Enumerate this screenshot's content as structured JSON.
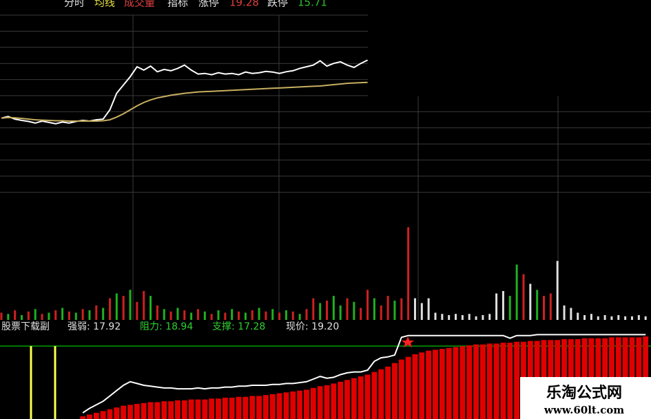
{
  "header": {
    "items": [
      {
        "text": "分时",
        "color": "#e0e0e0"
      },
      {
        "text": "均线",
        "color": "#e8e040"
      },
      {
        "text": "成交量",
        "color": "#e04040"
      },
      {
        "text": "指标",
        "color": "#e0e0e0"
      },
      {
        "text": "涨停",
        "color": "#e0e0e0"
      },
      {
        "text": "19.28",
        "color": "#e04040"
      },
      {
        "text": "跌停",
        "color": "#e0e0e0"
      },
      {
        "text": "15.71",
        "color": "#30c030"
      }
    ]
  },
  "indicator_legend": {
    "items": [
      {
        "text": "股票下载副",
        "color": "#e0e0e0"
      },
      {
        "text": "强弱: 17.92",
        "color": "#e0e0e0"
      },
      {
        "text": "阻力: 18.94",
        "color": "#30d030"
      },
      {
        "text": "支撑: 17.28",
        "color": "#30d030"
      },
      {
        "text": "现价: 19.20",
        "color": "#e0e0e0"
      }
    ]
  },
  "watermark": {
    "title": "乐淘公式网",
    "url": "www.60lt.com"
  },
  "chart_data": [
    {
      "type": "line",
      "ylim": [
        15.2,
        20.6
      ],
      "grid": true,
      "series": [
        {
          "color": "#ffffff",
          "values": [
            17.45,
            17.5,
            17.42,
            17.38,
            17.35,
            17.3,
            17.36,
            17.32,
            17.28,
            17.33,
            17.3,
            17.35,
            17.38,
            17.36,
            17.4,
            17.42,
            17.7,
            18.2,
            18.45,
            18.7,
            19.0,
            18.9,
            19.02,
            18.85,
            18.92,
            18.88,
            18.95,
            19.05,
            18.9,
            18.78,
            18.8,
            18.76,
            18.82,
            18.78,
            18.8,
            18.76,
            18.84,
            18.8,
            18.82,
            18.86,
            18.84,
            18.8,
            18.85,
            18.88,
            18.95,
            19.0,
            19.05,
            19.18,
            19.02,
            19.1,
            19.15,
            19.05,
            18.98,
            19.1,
            19.2
          ]
        },
        {
          "color": "#c8b060",
          "values": [
            17.45,
            17.47,
            17.46,
            17.44,
            17.42,
            17.4,
            17.39,
            17.38,
            17.37,
            17.37,
            17.36,
            17.36,
            17.36,
            17.36,
            17.36,
            17.37,
            17.4,
            17.48,
            17.58,
            17.7,
            17.82,
            17.92,
            18.0,
            18.06,
            18.1,
            18.14,
            18.17,
            18.2,
            18.22,
            18.24,
            18.25,
            18.26,
            18.27,
            18.28,
            18.29,
            18.3,
            18.31,
            18.32,
            18.33,
            18.34,
            18.35,
            18.36,
            18.37,
            18.38,
            18.39,
            18.4,
            18.41,
            18.42,
            18.44,
            18.46,
            18.48,
            18.5,
            18.51,
            18.52,
            18.53
          ]
        }
      ]
    },
    {
      "type": "bar",
      "ylim": [
        0,
        100
      ],
      "values": [
        6,
        5,
        8,
        4,
        7,
        9,
        5,
        6,
        8,
        10,
        7,
        6,
        9,
        8,
        12,
        10,
        18,
        22,
        20,
        25,
        15,
        24,
        20,
        12,
        9,
        7,
        10,
        8,
        6,
        9,
        7,
        5,
        8,
        6,
        9,
        7,
        6,
        8,
        10,
        7,
        9,
        6,
        8,
        7,
        5,
        9,
        18,
        14,
        16,
        20,
        12,
        18,
        15,
        10,
        25,
        18,
        12,
        20,
        16,
        18,
        77,
        18,
        14,
        18,
        6,
        5,
        4,
        5,
        4,
        5,
        3,
        4,
        5,
        22,
        24,
        20,
        46,
        38,
        30,
        25,
        20,
        22,
        49,
        12,
        10,
        6,
        4,
        5,
        3,
        4,
        3,
        4,
        3,
        3,
        4,
        3
      ],
      "colors": [
        "#d02020",
        "#20b020",
        "#d02020",
        "#20b020",
        "#d02020",
        "#20b020",
        "#d02020",
        "#20b020",
        "#d02020",
        "#20b020",
        "#d02020",
        "#20b020",
        "#d02020",
        "#20b020",
        "#d02020",
        "#20b020",
        "#d02020",
        "#20b020",
        "#d02020",
        "#20b020",
        "#d02020",
        "#d02020",
        "#20b020",
        "#d02020",
        "#20b020",
        "#d02020",
        "#20b020",
        "#d02020",
        "#20b020",
        "#d02020",
        "#20b020",
        "#d02020",
        "#20b020",
        "#d02020",
        "#20b020",
        "#d02020",
        "#20b020",
        "#d02020",
        "#20b020",
        "#d02020",
        "#20b020",
        "#d02020",
        "#20b020",
        "#d02020",
        "#20b020",
        "#d02020",
        "#d02020",
        "#20b020",
        "#d02020",
        "#20b020",
        "#20b020",
        "#d02020",
        "#20b020",
        "#d02020",
        "#d02020",
        "#20b020",
        "#d02020",
        "#d02020",
        "#20b020",
        "#d02020",
        "#d02020",
        "#e0e0e0",
        "#e0e0e0",
        "#e0e0e0",
        "#e0e0e0",
        "#e0e0e0",
        "#e0e0e0",
        "#e0e0e0",
        "#e0e0e0",
        "#e0e0e0",
        "#e0e0e0",
        "#e0e0e0",
        "#e0e0e0",
        "#e0e0e0",
        "#e0e0e0",
        "#20b020",
        "#20b020",
        "#d02020",
        "#e0e0e0",
        "#20b020",
        "#d02020",
        "#d02020",
        "#e0e0e0",
        "#e0e0e0",
        "#e0e0e0",
        "#e0e0e0",
        "#e0e0e0",
        "#e0e0e0",
        "#e0e0e0",
        "#e0e0e0",
        "#e0e0e0",
        "#e0e0e0",
        "#e0e0e0",
        "#e0e0e0",
        "#e0e0e0",
        "#e0e0e0"
      ]
    },
    {
      "type": "combo",
      "ylim": [
        0,
        100
      ],
      "series": [
        {
          "type": "bar",
          "color": "#e00000",
          "values": [
            null,
            null,
            null,
            null,
            null,
            null,
            null,
            null,
            null,
            null,
            null,
            null,
            3,
            5,
            7,
            9,
            11,
            13,
            15,
            16,
            17,
            18,
            19,
            19,
            20,
            20,
            21,
            21,
            22,
            22,
            22,
            23,
            23,
            24,
            24,
            25,
            25,
            26,
            26,
            27,
            28,
            29,
            30,
            31,
            32,
            33,
            35,
            37,
            38,
            40,
            42,
            44,
            46,
            48,
            50,
            53,
            56,
            59,
            63,
            67,
            70,
            73,
            75,
            77,
            78,
            79,
            80,
            81,
            82,
            83,
            84,
            84,
            85,
            85,
            86,
            86,
            87,
            87,
            88,
            88,
            89,
            89,
            89,
            90,
            90,
            90,
            91,
            91,
            91,
            91,
            92,
            92,
            92,
            92,
            92,
            93
          ]
        },
        {
          "type": "line",
          "color": "#ffffff",
          "values": [
            null,
            null,
            null,
            null,
            null,
            null,
            null,
            null,
            null,
            null,
            null,
            null,
            7,
            12,
            16,
            20,
            26,
            32,
            38,
            42,
            40,
            38,
            37,
            36,
            35,
            35,
            34,
            34,
            34,
            35,
            34,
            35,
            35,
            36,
            36,
            37,
            37,
            38,
            38,
            38,
            39,
            39,
            40,
            40,
            41,
            42,
            45,
            48,
            46,
            47,
            50,
            52,
            53,
            53,
            55,
            65,
            69,
            70,
            72,
            92,
            94,
            94,
            94,
            94,
            94,
            94,
            94,
            94,
            94,
            94,
            94,
            94,
            94,
            94,
            94,
            91,
            94,
            94,
            94,
            95,
            95,
            95,
            95,
            95,
            95,
            95,
            95,
            95,
            95,
            95,
            95,
            95,
            95,
            95,
            95,
            95
          ]
        }
      ]
    }
  ]
}
